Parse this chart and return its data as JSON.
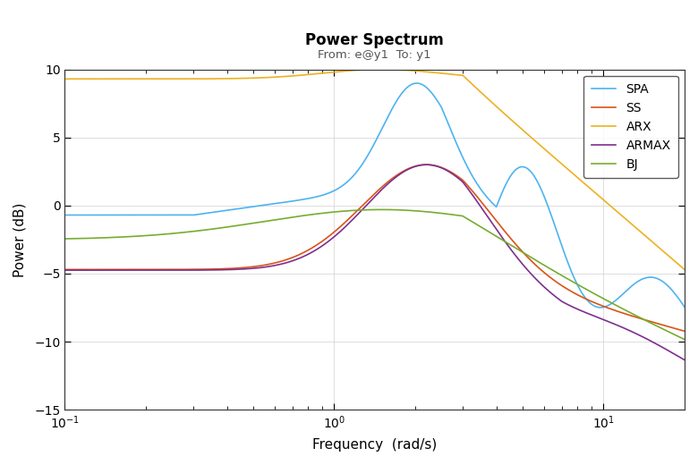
{
  "title": "Power Spectrum",
  "subtitle": "From: e@y1  To: y1",
  "xlabel": "Frequency  (rad/s)",
  "ylabel": "Power (dB)",
  "ylim": [
    -15,
    10
  ],
  "xlim": [
    0.1,
    20.0
  ],
  "colors": {
    "SPA": "#4db3f0",
    "SS": "#d95319",
    "ARX": "#edb120",
    "ARMAX": "#7e2f8e",
    "BJ": "#77ac30"
  },
  "linewidth": 1.2
}
